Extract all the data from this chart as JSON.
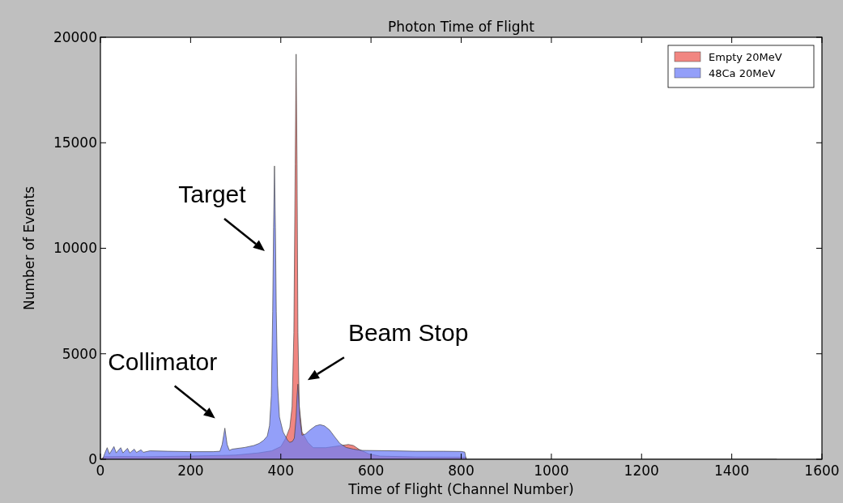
{
  "chart_data": {
    "type": "area",
    "title": "Photon Time of Flight",
    "xlabel": "Time of Flight (Channel Number)",
    "ylabel": "Number of Events",
    "xlim": [
      0,
      1600
    ],
    "xticks": [
      0,
      200,
      400,
      600,
      800,
      1000,
      1200,
      1400,
      1600
    ],
    "ylim": [
      0,
      20000
    ],
    "yticks": [
      0,
      5000,
      10000,
      15000,
      20000
    ],
    "grid": false,
    "legend": "top right",
    "series": [
      {
        "name": "Empty 20MeV",
        "color": "#f0807a",
        "x": [
          0,
          10,
          50,
          100,
          200,
          300,
          350,
          380,
          400,
          411,
          420,
          425,
          429,
          432,
          434,
          436,
          438,
          441,
          447,
          460,
          472,
          500,
          531,
          550,
          561,
          575,
          596,
          620,
          700,
          800,
          810,
          812,
          1500
        ],
        "values": [
          0,
          120,
          130,
          120,
          150,
          200,
          300,
          400,
          600,
          1000,
          1500,
          2500,
          6000,
          14000,
          19200,
          14000,
          6000,
          2500,
          1300,
          800,
          550,
          550,
          640,
          700,
          650,
          450,
          250,
          150,
          110,
          100,
          100,
          0,
          0
        ]
      },
      {
        "name": "48Ca 20MeV",
        "color": "#6f7ff7",
        "x": [
          5,
          10,
          15,
          20,
          30,
          35,
          45,
          50,
          60,
          65,
          75,
          80,
          90,
          95,
          110,
          150,
          200,
          250,
          265,
          270,
          276,
          281,
          286,
          292,
          320,
          340,
          352,
          362,
          370,
          375,
          379,
          382,
          384,
          386,
          388,
          390,
          393,
          397,
          405,
          415,
          420,
          426,
          430,
          434,
          436,
          438,
          440,
          443,
          447,
          455,
          465,
          477,
          487,
          497,
          508,
          520,
          531,
          545,
          561,
          580,
          650,
          700,
          760,
          800,
          808,
          811
        ],
        "values": [
          0,
          300,
          550,
          250,
          600,
          300,
          550,
          300,
          520,
          300,
          480,
          320,
          450,
          330,
          400,
          380,
          360,
          360,
          380,
          700,
          1475,
          700,
          420,
          480,
          560,
          650,
          750,
          900,
          1100,
          1600,
          3000,
          7000,
          11000,
          13900,
          11000,
          7000,
          3500,
          2000,
          1300,
          900,
          800,
          850,
          1000,
          2000,
          3000,
          3560,
          2800,
          1800,
          1140,
          1200,
          1390,
          1580,
          1640,
          1580,
          1390,
          1050,
          750,
          560,
          480,
          420,
          400,
          380,
          380,
          370,
          340,
          0
        ]
      }
    ],
    "annotations": [
      {
        "text": "Target",
        "x": 386,
        "y": 13900
      },
      {
        "text": "Collimator",
        "x": 276,
        "y": 1475
      },
      {
        "text": "Beam Stop",
        "x": 438,
        "y": 3560
      }
    ]
  }
}
